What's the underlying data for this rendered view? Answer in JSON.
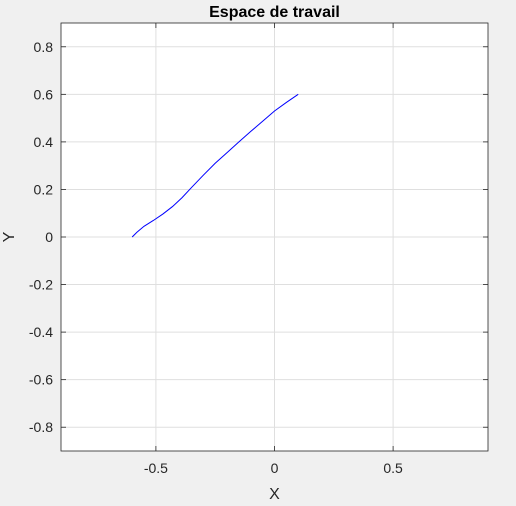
{
  "chart_data": {
    "type": "line",
    "title": "Espace de travail",
    "xlabel": "X",
    "ylabel": "Y",
    "xlim": [
      -0.9,
      0.9
    ],
    "ylim": [
      -0.9,
      0.9
    ],
    "xticks": [
      -0.5,
      0,
      0.5
    ],
    "xtick_labels": [
      "-0.5",
      "0",
      "0.5"
    ],
    "yticks": [
      0.8,
      0.6,
      0.4,
      0.2,
      0,
      -0.2,
      -0.4,
      -0.6,
      -0.8
    ],
    "ytick_labels": [
      "0.8",
      "0.6",
      "0.4",
      "0.2",
      "0",
      "-0.2",
      "-0.4",
      "-0.6",
      "-0.8"
    ],
    "grid": true,
    "series": [
      {
        "color": "#0000ff",
        "x": [
          -0.6,
          -0.58,
          -0.55,
          -0.51,
          -0.47,
          -0.43,
          -0.39,
          -0.35,
          -0.3,
          -0.25,
          -0.2,
          -0.15,
          -0.1,
          -0.05,
          0.0,
          0.05,
          0.1
        ],
        "y": [
          0.0,
          0.02,
          0.045,
          0.07,
          0.097,
          0.128,
          0.165,
          0.208,
          0.26,
          0.31,
          0.355,
          0.4,
          0.444,
          0.487,
          0.53,
          0.566,
          0.6
        ]
      }
    ]
  }
}
